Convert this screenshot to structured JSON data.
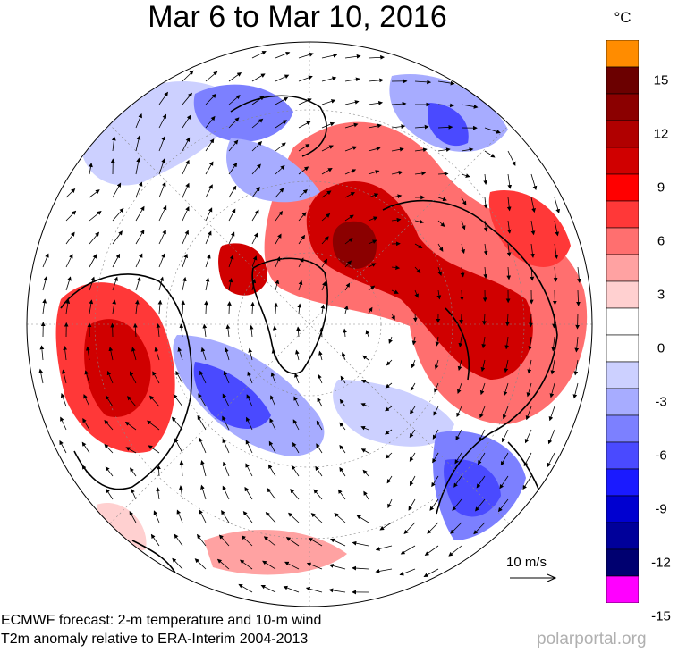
{
  "title": "Mar 6 to Mar 10, 2016",
  "colorbar": {
    "unit": "°C",
    "tick_labels": [
      "15",
      "12",
      "9",
      "6",
      "3",
      "0",
      "-3",
      "-6",
      "-9",
      "-12",
      "-15"
    ],
    "colors": [
      "#ff8c00",
      "#6b0000",
      "#8b0000",
      "#b00000",
      "#d00000",
      "#ff0000",
      "#ff3838",
      "#ff6f6f",
      "#ffa2a2",
      "#ffd0d0",
      "#ffffff",
      "#ffffff",
      "#ccd0ff",
      "#a7acff",
      "#7c80ff",
      "#4a4aff",
      "#1a1aff",
      "#0000d0",
      "#00009a",
      "#000070",
      "#ff00ff"
    ]
  },
  "scale": {
    "label": "10 m/s"
  },
  "footer": {
    "line1": "ECMWF forecast: 2-m temperature and 10-m wind",
    "line2": "T2m anomaly relative to ERA-Interim 2004-2013"
  },
  "credit": "polarportal.org"
}
